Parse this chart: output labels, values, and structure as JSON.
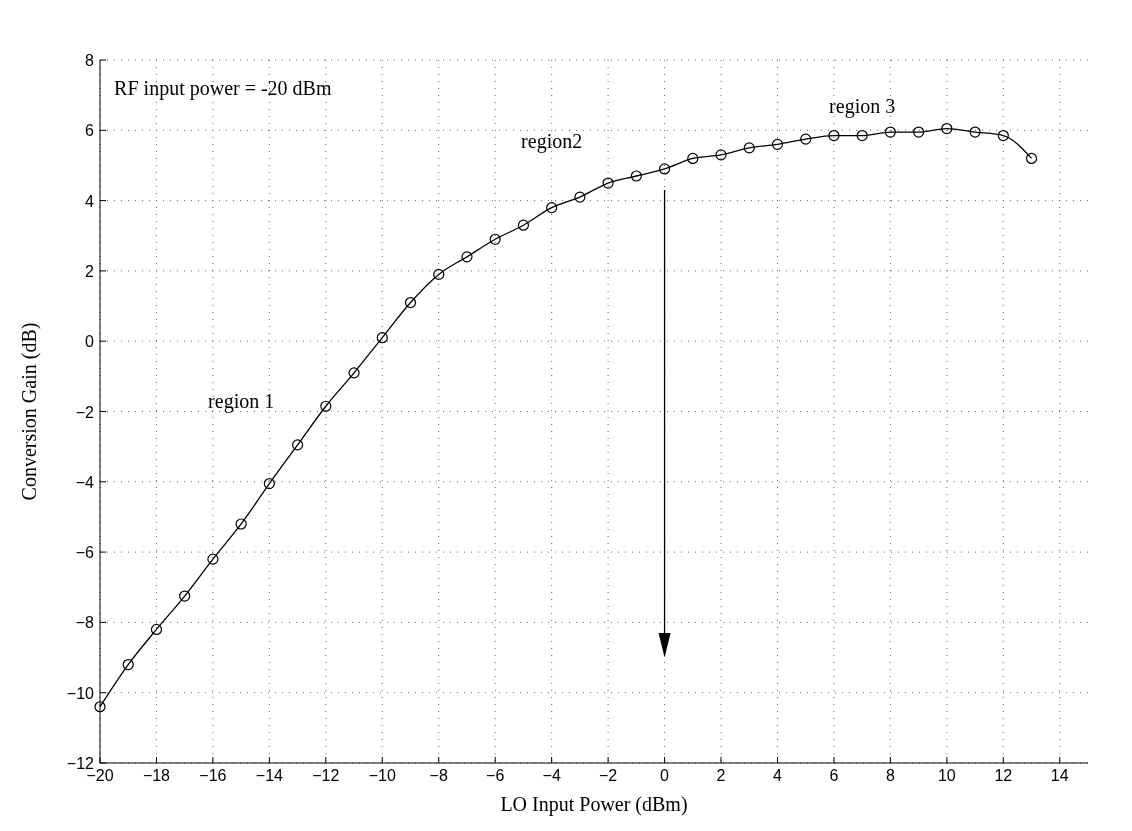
{
  "chart_data": {
    "type": "line",
    "xlabel": "LO Input Power (dBm)",
    "ylabel": "Conversion Gain (dB)",
    "x": [
      -20,
      -19,
      -18,
      -17,
      -16,
      -15,
      -14,
      -13,
      -12,
      -11,
      -10,
      -9,
      -8,
      -7,
      -6,
      -5,
      -4,
      -3,
      -2,
      -1,
      0,
      1,
      2,
      3,
      4,
      5,
      6,
      7,
      8,
      9,
      10,
      11,
      12,
      13
    ],
    "series": [
      {
        "color": "#000000",
        "values": [
          -10.4,
          -9.2,
          -8.2,
          -7.25,
          -6.2,
          -5.2,
          -4.05,
          -2.95,
          -1.85,
          -0.9,
          0.1,
          1.1,
          1.9,
          2.4,
          2.9,
          3.3,
          3.8,
          4.1,
          4.5,
          4.7,
          4.9,
          5.2,
          5.3,
          5.5,
          5.6,
          5.75,
          5.85,
          5.85,
          5.95,
          5.95,
          6.05,
          5.95,
          5.85,
          5.2
        ]
      }
    ],
    "xlim": [
      -20,
      15
    ],
    "xticks": [
      -20,
      -18,
      -16,
      -14,
      -12,
      -10,
      -8,
      -6,
      -4,
      -2,
      0,
      2,
      4,
      6,
      8,
      10,
      12,
      14
    ],
    "ylim": [
      -12,
      8
    ],
    "yticks": [
      -12,
      -10,
      -8,
      -6,
      -4,
      -2,
      0,
      2,
      4,
      6,
      8
    ],
    "grid": true,
    "marker": "circle",
    "line_style": "solid",
    "annotations": [
      "RF input power = -20 dBm",
      "region 1",
      "region2",
      "region 3"
    ]
  }
}
